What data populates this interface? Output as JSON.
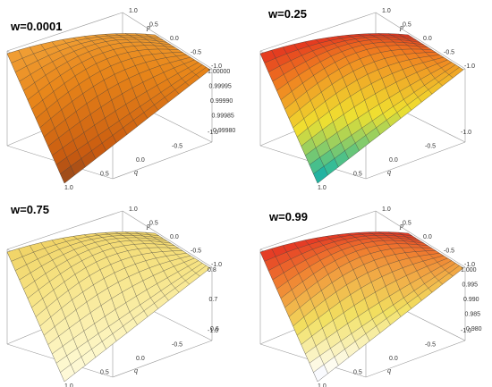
{
  "chart_data": [
    {
      "type": "surface3d",
      "title": "w=0.0001",
      "xlabel": "p",
      "ylabel": "q",
      "x_ticks": [
        "1.0",
        "0.5",
        "0.0",
        "-0.5",
        "-1.0"
      ],
      "y_ticks": [
        "1.0",
        "0.5",
        "0.0",
        "-0.5",
        "-1.0"
      ],
      "z_ticks": [
        "1.00000",
        "0.99995",
        "0.99990",
        "0.99985",
        "0.99980"
      ],
      "zlim": [
        0.9998,
        1.0
      ],
      "colormap": "orange",
      "colors": [
        "#3a2a30",
        "#c85a10",
        "#e8861a",
        "#f2a43a"
      ]
    },
    {
      "type": "surface3d",
      "title": "w=0.25",
      "xlabel": "p",
      "ylabel": "q",
      "x_ticks": [
        "1.0",
        "0.5",
        "0.0",
        "-0.5",
        "-1.0"
      ],
      "y_ticks": [
        "1.0",
        "0.5",
        "0.0",
        "-0.5",
        "-1.0"
      ],
      "z_ticks": [],
      "colormap": "rainbow",
      "colors": [
        "#2a1ac8",
        "#22b8a0",
        "#f0e030",
        "#f08020",
        "#e02020"
      ]
    },
    {
      "type": "surface3d",
      "title": "w=0.75",
      "xlabel": "p",
      "ylabel": "q",
      "x_ticks": [
        "1.0",
        "0.5",
        "0.0",
        "-0.5",
        "-1.0"
      ],
      "y_ticks": [
        "1.0",
        "0.5",
        "0.0",
        "-0.5",
        "-1.0"
      ],
      "z_ticks": [
        "0.8",
        "0.7",
        "0.6"
      ],
      "zlim": [
        0.55,
        0.9
      ],
      "colormap": "pale-yellow",
      "colors": [
        "#ffffff",
        "#fdf7c8",
        "#f7e486",
        "#efd060"
      ]
    },
    {
      "type": "surface3d",
      "title": "w=0.99",
      "xlabel": "p",
      "ylabel": "q",
      "x_ticks": [
        "1.0",
        "0.5",
        "0.0",
        "-0.5",
        "-1.0"
      ],
      "y_ticks": [
        "1.0",
        "0.5",
        "0.0",
        "-0.5",
        "-1.0"
      ],
      "z_ticks": [
        "1.000",
        "0.995",
        "0.990",
        "0.985",
        "0.980"
      ],
      "zlim": [
        0.98,
        1.0
      ],
      "colormap": "red-yellow-white-blue",
      "colors": [
        "#3050d8",
        "#ffffff",
        "#f2e060",
        "#f08030",
        "#e02020"
      ]
    }
  ]
}
